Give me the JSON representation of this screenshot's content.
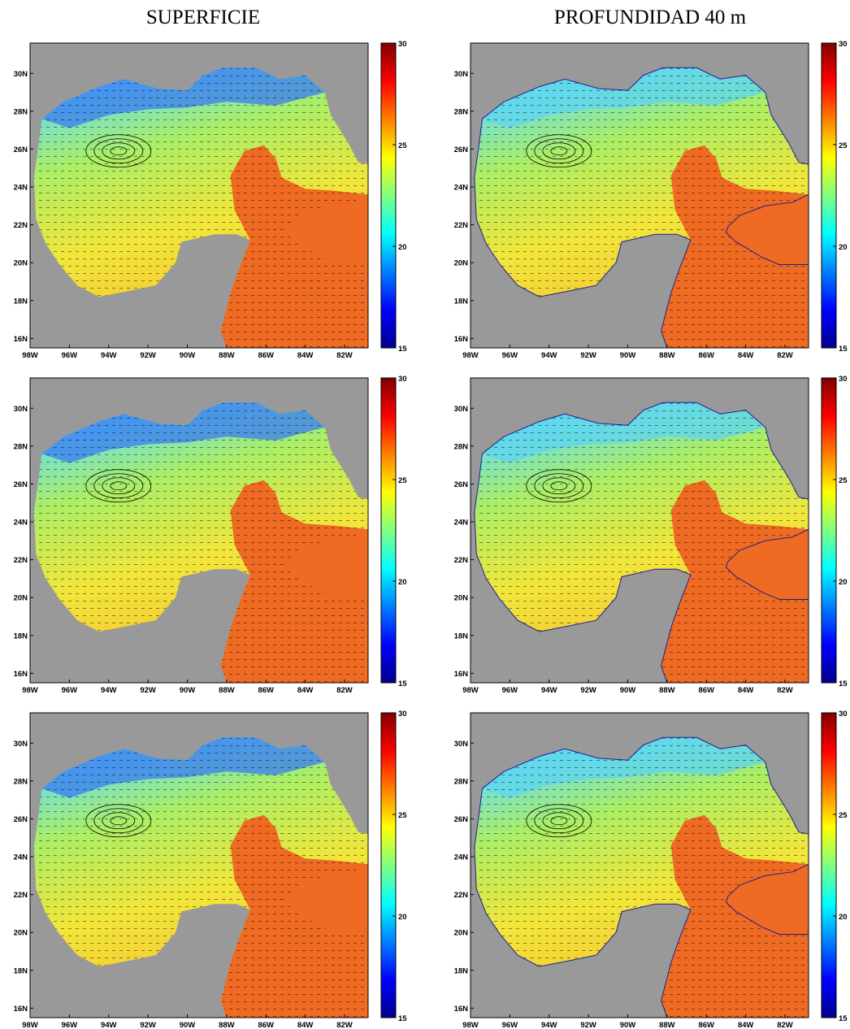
{
  "columns": [
    {
      "title": "SUPERFICIE"
    },
    {
      "title": "PROFUNDIDAD 40 m"
    }
  ],
  "lat_ticks": [
    "30N",
    "28N",
    "26N",
    "24N",
    "22N",
    "20N",
    "18N",
    "16N"
  ],
  "lon_ticks": [
    "98W",
    "96W",
    "94W",
    "92W",
    "90W",
    "88W",
    "86W",
    "84W",
    "82W"
  ],
  "lat_values": [
    30,
    28,
    26,
    24,
    22,
    20,
    18,
    16
  ],
  "lon_values": [
    -98,
    -96,
    -94,
    -92,
    -90,
    -88,
    -86,
    -84,
    -82
  ],
  "map_extent": {
    "lon": [
      -98,
      -80.8
    ],
    "lat": [
      15.5,
      31.6
    ]
  },
  "colorbar": {
    "min": 15,
    "max": 30,
    "ticks": [
      "30",
      "25",
      "20",
      "15"
    ],
    "tick_values": [
      30,
      25,
      20,
      15
    ],
    "colormap": "jet"
  },
  "colors": {
    "land": "#999999",
    "coast": "#1f1f8f",
    "vectors": "#000000"
  },
  "panels": [
    {
      "row": 1,
      "column": "SUPERFICIE"
    },
    {
      "row": 1,
      "column": "PROFUNDIDAD 40 m"
    },
    {
      "row": 2,
      "column": "SUPERFICIE"
    },
    {
      "row": 2,
      "column": "PROFUNDIDAD 40 m"
    },
    {
      "row": 3,
      "column": "SUPERFICIE"
    },
    {
      "row": 3,
      "column": "PROFUNDIDAD 40 m"
    }
  ]
}
